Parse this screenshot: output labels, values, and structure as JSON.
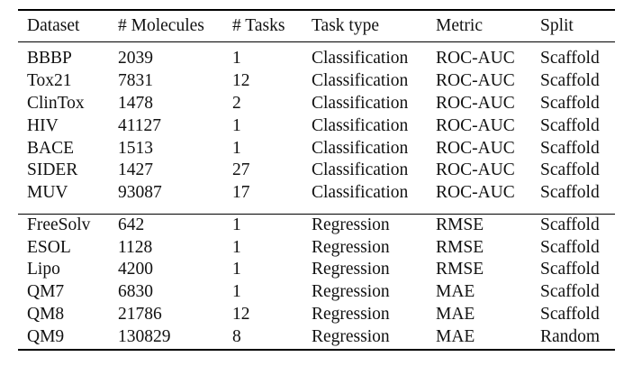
{
  "table": {
    "headers": [
      "Dataset",
      "# Molecules",
      "# Tasks",
      "Task type",
      "Metric",
      "Split"
    ],
    "groups": [
      {
        "rows": [
          [
            "BBBP",
            "2039",
            "1",
            "Classification",
            "ROC-AUC",
            "Scaffold"
          ],
          [
            "Tox21",
            "7831",
            "12",
            "Classification",
            "ROC-AUC",
            "Scaffold"
          ],
          [
            "ClinTox",
            "1478",
            "2",
            "Classification",
            "ROC-AUC",
            "Scaffold"
          ],
          [
            "HIV",
            "41127",
            "1",
            "Classification",
            "ROC-AUC",
            "Scaffold"
          ],
          [
            "BACE",
            "1513",
            "1",
            "Classification",
            "ROC-AUC",
            "Scaffold"
          ],
          [
            "SIDER",
            "1427",
            "27",
            "Classification",
            "ROC-AUC",
            "Scaffold"
          ],
          [
            "MUV",
            "93087",
            "17",
            "Classification",
            "ROC-AUC",
            "Scaffold"
          ]
        ]
      },
      {
        "rows": [
          [
            "FreeSolv",
            "642",
            "1",
            "Regression",
            "RMSE",
            "Scaffold"
          ],
          [
            "ESOL",
            "1128",
            "1",
            "Regression",
            "RMSE",
            "Scaffold"
          ],
          [
            "Lipo",
            "4200",
            "1",
            "Regression",
            "RMSE",
            "Scaffold"
          ],
          [
            "QM7",
            "6830",
            "1",
            "Regression",
            "MAE",
            "Scaffold"
          ],
          [
            "QM8",
            "21786",
            "12",
            "Regression",
            "MAE",
            "Scaffold"
          ],
          [
            "QM9",
            "130829",
            "8",
            "Regression",
            "MAE",
            "Random"
          ]
        ]
      }
    ]
  }
}
